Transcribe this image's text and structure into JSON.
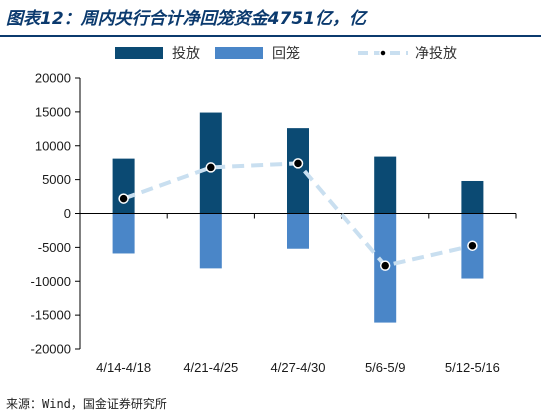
{
  "title": "图表12：周内央行合计净回笼资金4751亿，亿",
  "source": "来源：Wind，国金证券研究所",
  "colors": {
    "title": "#0b3a6e",
    "issuance": "#0b4a73",
    "maturity": "#4a86c8",
    "net": "#c9dff0",
    "axis": "#000000"
  },
  "chart_data": {
    "type": "bar",
    "categories": [
      "4/14-4/18",
      "4/21-4/25",
      "4/27-4/30",
      "5/6-5/9",
      "5/12-5/16"
    ],
    "ylim": [
      -20000,
      20000
    ],
    "yticks": [
      -20000,
      -15000,
      -10000,
      -5000,
      0,
      5000,
      10000,
      15000,
      20000
    ],
    "ytick_labels": [
      "-20000",
      "-15000",
      "-10000",
      "-5000",
      "0",
      "5000",
      "10000",
      "15000",
      "20000"
    ],
    "series": [
      {
        "name": "投放",
        "kind": "bar",
        "values": [
          8100,
          14900,
          12600,
          8400,
          4800
        ]
      },
      {
        "name": "回笼",
        "kind": "bar",
        "values": [
          -5900,
          -8100,
          -5200,
          -16100,
          -9600
        ]
      },
      {
        "name": "净投放",
        "kind": "line",
        "values": [
          2200,
          6800,
          7400,
          -7700,
          -4751
        ]
      }
    ],
    "legend_position": "top",
    "grid": false
  }
}
